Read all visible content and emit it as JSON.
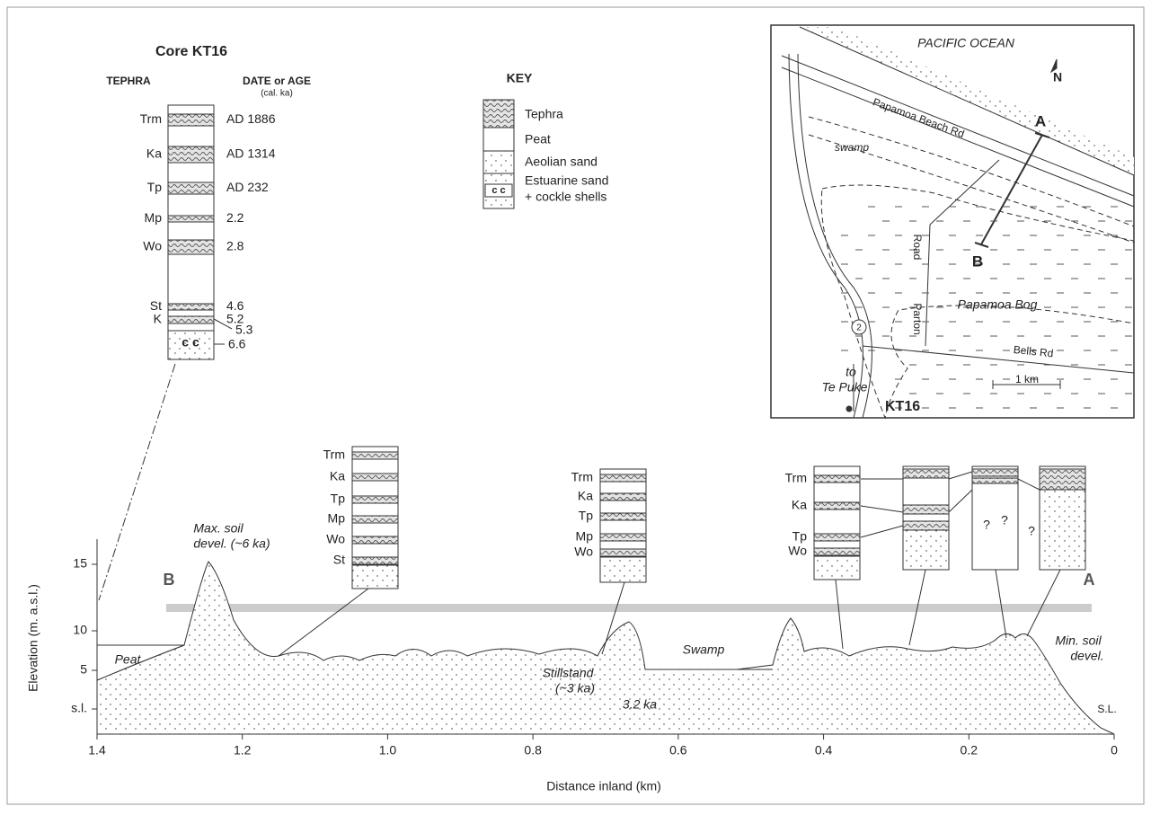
{
  "core": {
    "title": "Core KT16",
    "tephra_header": "TEPHRA",
    "date_header": "DATE or AGE",
    "date_unit": "(cal. ka)",
    "layers": [
      {
        "name": "Trm",
        "date": "AD 1886"
      },
      {
        "name": "Ka",
        "date": "AD 1314"
      },
      {
        "name": "Tp",
        "date": "AD 232"
      },
      {
        "name": "Mp",
        "date": "2.2"
      },
      {
        "name": "Wo",
        "date": "2.8"
      },
      {
        "name": "St",
        "date": "4.6"
      },
      {
        "name": "K",
        "date": "5.2"
      }
    ],
    "extra_date": "5.3",
    "base_date": "6.6",
    "shell_symbol": "c c"
  },
  "key": {
    "title": "KEY",
    "items": [
      "Tephra",
      "Peat",
      "Aeolian sand",
      "Estuarine sand",
      "+ cockle shells"
    ]
  },
  "map": {
    "ocean": "PACIFIC OCEAN",
    "north": "N",
    "beach_road": "Papamoa Beach Rd",
    "swamp": "swamp",
    "a": "A",
    "b": "B",
    "road": "Road",
    "parton": "Parton",
    "bog": "Papamoa Bog",
    "bells_road": "Bells Rd",
    "highway": "2",
    "to": "to",
    "town": "Te Puke",
    "scale": "1 km",
    "core": "KT16"
  },
  "profile": {
    "y_label": "Elevation (m. a.s.l.)",
    "x_label": "Distance inland (km)",
    "y_ticks": [
      "15",
      "10",
      "5",
      "s.l."
    ],
    "x_ticks": [
      "1.4",
      "1.2",
      "1.0",
      "0.8",
      "0.6",
      "0.4",
      "0.2",
      "0"
    ],
    "end_b": "B",
    "end_a": "A",
    "max_soil": "Max. soil",
    "max_soil_2": "devel. (~6 ka)",
    "peat": "Peat",
    "stillstand": "Stillstand",
    "stillstand_2": "(~3 ka)",
    "swamp": "Swamp",
    "swamp_age": "3.2 ka",
    "min_soil": "Min. soil",
    "min_soil_2": "devel.",
    "sea_level": "S.L.",
    "uncertain": "?",
    "cores": [
      [
        "Trm",
        "Ka",
        "Tp",
        "Mp",
        "Wo",
        "St"
      ],
      [
        "Trm",
        "Ka",
        "Tp",
        "Mp",
        "Wo"
      ],
      [
        "Trm",
        "Ka",
        "Tp",
        "Wo"
      ]
    ]
  }
}
